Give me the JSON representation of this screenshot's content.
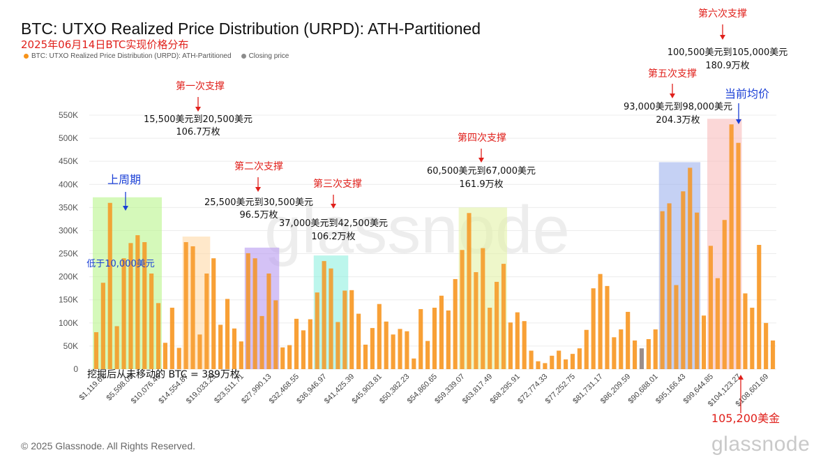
{
  "header": {
    "title": "BTC: UTXO Realized Price Distribution (URPD): ATH-Partitioned",
    "subtitle": "2025年06月14日BTC实现价格分布"
  },
  "legend": {
    "items": [
      {
        "label": "BTC: UTXO Realized Price Distribution (URPD): ATH-Partitioned",
        "color": "#f7931a"
      },
      {
        "label": "Closing price",
        "color": "#8c8c8c"
      }
    ]
  },
  "footer": {
    "copyright": "© 2025 Glassnode. All Rights Reserved.",
    "logo": "glassnode",
    "watermark": "glassnode"
  },
  "colors": {
    "bar": "#f7931a",
    "closing": "#8c7d7a",
    "annotation_red": "#e0201b",
    "annotation_blue": "#1a3fd6"
  },
  "chart_data": {
    "type": "bar",
    "ylim": [
      0,
      550000
    ],
    "y_ticks": [
      {
        "value": 0,
        "label": "0"
      },
      {
        "value": 50000,
        "label": "50K"
      },
      {
        "value": 100000,
        "label": "100K"
      },
      {
        "value": 150000,
        "label": "150K"
      },
      {
        "value": 200000,
        "label": "200K"
      },
      {
        "value": 250000,
        "label": "250K"
      },
      {
        "value": 300000,
        "label": "300K"
      },
      {
        "value": 350000,
        "label": "350K"
      },
      {
        "value": 400000,
        "label": "400K"
      },
      {
        "value": 450000,
        "label": "450K"
      },
      {
        "value": 500000,
        "label": "500K"
      },
      {
        "value": 550000,
        "label": "550K"
      }
    ],
    "x_tick_labels": [
      "$1,119.61",
      "$5,598.05",
      "$10,076.49",
      "$14,554.87",
      "$19,033.29",
      "$23,511.71",
      "$27,990.13",
      "$32,468.55",
      "$36,946.97",
      "$41,425.39",
      "$45,903.81",
      "$50,382.23",
      "$54,860.65",
      "$59,339.07",
      "$63,817.49",
      "$68,295.91",
      "$72,774.33",
      "$77,252.75",
      "$81,731.17",
      "$86,209.59",
      "$90,688.01",
      "$95,166.43",
      "$99,644.85",
      "$104,123.27",
      "$108,601.69"
    ],
    "closing_index": 79,
    "values": [
      80000,
      187000,
      360000,
      93000,
      240000,
      273000,
      290000,
      275000,
      207000,
      143000,
      57000,
      133000,
      46000,
      275000,
      266000,
      75000,
      207000,
      240000,
      96000,
      152000,
      88000,
      60000,
      251000,
      240000,
      115000,
      207000,
      149000,
      47000,
      52000,
      109000,
      84000,
      108000,
      166000,
      234000,
      218000,
      102000,
      170000,
      171000,
      120000,
      53000,
      89000,
      141000,
      103000,
      75000,
      87000,
      82000,
      23000,
      130000,
      61000,
      133000,
      159000,
      127000,
      195000,
      258000,
      338000,
      210000,
      262000,
      133000,
      189000,
      228000,
      101000,
      123000,
      104000,
      40000,
      17000,
      13000,
      29000,
      40000,
      21000,
      33000,
      45000,
      85000,
      175000,
      206000,
      180000,
      69000,
      86000,
      124000,
      62000,
      45000,
      65000,
      86000,
      342000,
      359000,
      182000,
      385000,
      436000,
      339000,
      116000,
      267000,
      197000,
      323000,
      530000,
      490000,
      164000,
      133000,
      269000,
      100000,
      62000
    ],
    "zones": [
      {
        "start": 0,
        "end": 9,
        "color": "#b9f58c"
      },
      {
        "start": 13,
        "end": 16,
        "color": "#ffd9a6"
      },
      {
        "start": 22,
        "end": 26,
        "color": "#b899f0"
      },
      {
        "start": 32,
        "end": 36,
        "color": "#8ff0e0"
      },
      {
        "start": 53,
        "end": 59,
        "color": "#e3f2a6"
      },
      {
        "start": 82,
        "end": 87,
        "color": "#9fb3ec"
      },
      {
        "start": 89,
        "end": 93,
        "color": "#f8bcbc"
      }
    ],
    "annotations": {
      "cycle_label": "上周期",
      "cycle_range": "低于10,000美元",
      "support1_label": "第一次支撑",
      "support1_range": "15,500美元到20,500美元",
      "support1_amount": "106.7万枚",
      "support2_label": "第二次支撑",
      "support2_range": "25,500美元到30,500美元",
      "support2_amount": "96.5万枚",
      "support3_label": "第三次支撑",
      "support3_range": "37,000美元到42,500美元",
      "support3_amount": "106.2万枚",
      "support4_label": "第四次支撑",
      "support4_range": "60,500美元到67,000美元",
      "support4_amount": "161.9万枚",
      "support5_label": "第五次支撑",
      "support5_range": "93,000美元到98,000美元",
      "support5_amount": "204.3万枚",
      "support6_label": "第六次支撑",
      "support6_range": "100,500美元到105,000美元",
      "support6_amount": "180.9万枚",
      "avg_label": "当前均价",
      "price_label": "105,200美金",
      "mined_label": "挖掘后从未移动的 BTC = 389万枚"
    }
  }
}
